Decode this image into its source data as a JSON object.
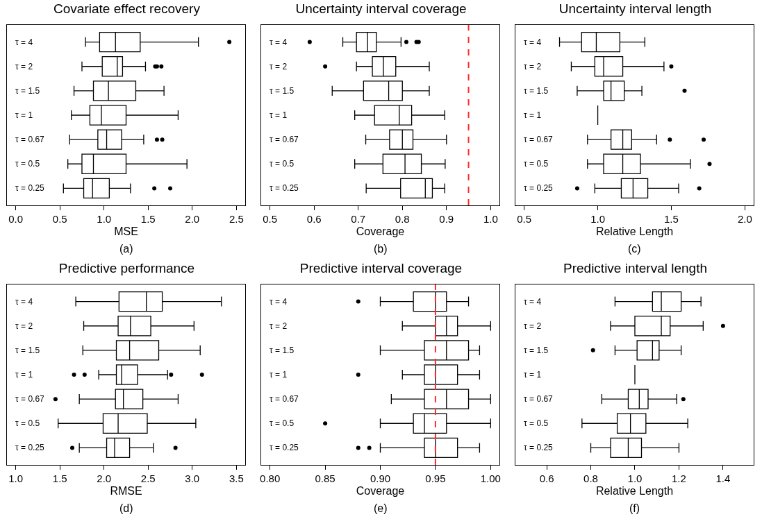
{
  "chart_data": [
    {
      "type": "box",
      "orientation": "horizontal",
      "title": "Covariate effect recovery",
      "xlabel": "MSE",
      "annotations": [
        "(a)"
      ],
      "categories": [
        "τ = 4",
        "τ = 2",
        "τ = 1.5",
        "τ = 1",
        "τ = 0.67",
        "τ = 0.5",
        "τ = 0.25"
      ],
      "xlim": [
        -0.1,
        2.6
      ],
      "xticks": [
        {
          "value": 0,
          "label": "0.0"
        },
        0.5,
        {
          "value": 1,
          "label": "1.0"
        },
        1.5,
        {
          "value": 2,
          "label": "2.0"
        },
        2.5
      ],
      "boxes": [
        {
          "low": 0.79,
          "q1": 0.95,
          "median": 1.13,
          "q3": 1.41,
          "high": 2.07,
          "outliers": [
            2.42
          ]
        },
        {
          "low": 0.75,
          "q1": 0.98,
          "median": 1.15,
          "q3": 1.21,
          "high": 1.47,
          "outliers": [
            1.58,
            1.6,
            1.65
          ]
        },
        {
          "low": 0.66,
          "q1": 0.88,
          "median": 1.05,
          "q3": 1.36,
          "high": 1.68
        },
        {
          "low": 0.63,
          "q1": 0.84,
          "median": 0.97,
          "q3": 1.25,
          "high": 1.84
        },
        {
          "low": 0.61,
          "q1": 0.93,
          "median": 1.03,
          "q3": 1.2,
          "high": 1.45,
          "outliers": [
            1.6,
            1.66
          ]
        },
        {
          "low": 0.59,
          "q1": 0.75,
          "median": 0.88,
          "q3": 1.25,
          "high": 1.94
        },
        {
          "low": 0.54,
          "q1": 0.77,
          "median": 0.87,
          "q3": 1.06,
          "high": 1.3,
          "outliers": [
            1.57,
            1.75
          ]
        }
      ]
    },
    {
      "type": "box",
      "orientation": "horizontal",
      "title": "Uncertainty interval coverage",
      "xlabel": "Coverage",
      "annotations": [
        "(b)"
      ],
      "categories": [
        "τ = 4",
        "τ = 2",
        "τ = 1.5",
        "τ = 1",
        "τ = 0.67",
        "τ = 0.5",
        "τ = 0.25"
      ],
      "xlim": [
        0.48,
        1.02
      ],
      "xticks": [
        0.5,
        0.6,
        0.7,
        0.8,
        0.9,
        {
          "value": 1,
          "label": "1.0"
        }
      ],
      "ref_lines": [
        {
          "axis": "x",
          "value": 0.95,
          "color": "#ff2a2a",
          "line_style": "dashed"
        }
      ],
      "boxes": [
        {
          "low": 0.665,
          "q1": 0.696,
          "median": 0.721,
          "q3": 0.741,
          "high": 0.797,
          "outliers": [
            0.59,
            0.809,
            0.832,
            0.837
          ]
        },
        {
          "low": 0.696,
          "q1": 0.732,
          "median": 0.757,
          "q3": 0.785,
          "high": 0.861,
          "outliers": [
            0.625
          ]
        },
        {
          "low": 0.641,
          "q1": 0.712,
          "median": 0.769,
          "q3": 0.8,
          "high": 0.861
        },
        {
          "low": 0.692,
          "q1": 0.737,
          "median": 0.793,
          "q3": 0.821,
          "high": 0.896
        },
        {
          "low": 0.717,
          "q1": 0.771,
          "median": 0.8,
          "q3": 0.824,
          "high": 0.9
        },
        {
          "low": 0.692,
          "q1": 0.756,
          "median": 0.806,
          "q3": 0.843,
          "high": 0.897
        },
        {
          "low": 0.718,
          "q1": 0.796,
          "median": 0.852,
          "q3": 0.868,
          "high": 0.896
        }
      ]
    },
    {
      "type": "box",
      "orientation": "horizontal",
      "title": "Uncertainty interval length",
      "xlabel": "Relative Length",
      "annotations": [
        "(c)"
      ],
      "categories": [
        "τ = 4",
        "τ = 2",
        "τ = 1.5",
        "τ = 1",
        "τ = 0.67",
        "τ = 0.5",
        "τ = 0.25"
      ],
      "xlim": [
        0.44,
        2.06
      ],
      "xticks": [
        0.5,
        {
          "value": 1,
          "label": "1.0"
        },
        1.5,
        {
          "value": 2,
          "label": "2.0"
        }
      ],
      "boxes": [
        {
          "low": 0.74,
          "q1": 0.89,
          "median": 0.99,
          "q3": 1.15,
          "high": 1.32
        },
        {
          "low": 0.82,
          "q1": 0.98,
          "median": 1.04,
          "q3": 1.17,
          "high": 1.45,
          "outliers": [
            1.5
          ]
        },
        {
          "low": 0.86,
          "q1": 1.04,
          "median": 1.09,
          "q3": 1.18,
          "high": 1.3,
          "outliers": [
            1.59
          ]
        },
        {
          "low": 1,
          "q1": 1,
          "median": 1,
          "q3": 1,
          "high": 1
        },
        {
          "low": 0.93,
          "q1": 1.09,
          "median": 1.17,
          "q3": 1.23,
          "high": 1.4,
          "outliers": [
            1.49,
            1.72
          ]
        },
        {
          "low": 0.93,
          "q1": 1.04,
          "median": 1.17,
          "q3": 1.29,
          "high": 1.63,
          "outliers": [
            1.76
          ]
        },
        {
          "low": 0.98,
          "q1": 1.16,
          "median": 1.24,
          "q3": 1.34,
          "high": 1.55,
          "outliers": [
            0.86,
            1.69
          ]
        }
      ]
    },
    {
      "type": "box",
      "orientation": "horizontal",
      "title": "Predictive performance",
      "xlabel": "RMSE",
      "annotations": [
        "(d)"
      ],
      "categories": [
        "τ = 4",
        "τ = 2",
        "τ = 1.5",
        "τ = 1",
        "τ = 0.67",
        "τ = 0.5",
        "τ = 0.25"
      ],
      "xlim": [
        0.9,
        3.6
      ],
      "xticks": [
        {
          "value": 1,
          "label": "1.0"
        },
        1.5,
        {
          "value": 2,
          "label": "2.0"
        },
        2.5,
        {
          "value": 3,
          "label": "3.0"
        },
        3.5
      ],
      "boxes": [
        {
          "low": 1.68,
          "q1": 2.17,
          "median": 2.48,
          "q3": 2.66,
          "high": 3.33
        },
        {
          "low": 1.77,
          "q1": 2.16,
          "median": 2.3,
          "q3": 2.53,
          "high": 3.02
        },
        {
          "low": 1.76,
          "q1": 2.14,
          "median": 2.29,
          "q3": 2.62,
          "high": 3.09
        },
        {
          "low": 1.94,
          "q1": 2.14,
          "median": 2.2,
          "q3": 2.38,
          "high": 2.72,
          "outliers": [
            1.66,
            1.78,
            2.76,
            3.11
          ]
        },
        {
          "low": 1.72,
          "q1": 2.13,
          "median": 2.22,
          "q3": 2.44,
          "high": 2.84,
          "outliers": [
            1.45
          ]
        },
        {
          "low": 1.48,
          "q1": 1.99,
          "median": 2.16,
          "q3": 2.49,
          "high": 3.04
        },
        {
          "low": 1.72,
          "q1": 2.03,
          "median": 2.12,
          "q3": 2.29,
          "high": 2.56,
          "outliers": [
            1.64,
            2.81
          ]
        }
      ]
    },
    {
      "type": "box",
      "orientation": "horizontal",
      "title": "Predictive interval coverage",
      "xlabel": "Coverage",
      "annotations": [
        "(e)"
      ],
      "categories": [
        "τ = 4",
        "τ = 2",
        "τ = 1.5",
        "τ = 1",
        "τ = 0.67",
        "τ = 0.5",
        "τ = 0.25"
      ],
      "xlim": [
        0.792,
        1.008
      ],
      "xticks": [
        {
          "value": 0.8,
          "label": "0.80"
        },
        0.85,
        {
          "value": 0.9,
          "label": "0.90"
        },
        0.95,
        {
          "value": 1,
          "label": "1.00"
        }
      ],
      "ref_lines": [
        {
          "axis": "x",
          "value": 0.95,
          "color": "#ff2a2a",
          "line_style": "dashed"
        }
      ],
      "boxes": [
        {
          "low": 0.9,
          "q1": 0.93,
          "median": 0.95,
          "q3": 0.96,
          "high": 0.98,
          "outliers": [
            0.88
          ]
        },
        {
          "low": 0.92,
          "q1": 0.95,
          "median": 0.96,
          "q3": 0.97,
          "high": 1
        },
        {
          "low": 0.9,
          "q1": 0.94,
          "median": 0.96,
          "q3": 0.98,
          "high": 0.99
        },
        {
          "low": 0.92,
          "q1": 0.94,
          "median": 0.95,
          "q3": 0.97,
          "high": 0.99,
          "outliers": [
            0.88
          ]
        },
        {
          "low": 0.91,
          "q1": 0.94,
          "median": 0.96,
          "q3": 0.98,
          "high": 1
        },
        {
          "low": 0.9,
          "q1": 0.93,
          "median": 0.94,
          "q3": 0.96,
          "high": 1,
          "outliers": [
            0.85
          ]
        },
        {
          "low": 0.9,
          "q1": 0.94,
          "median": 0.95,
          "q3": 0.97,
          "high": 0.99,
          "outliers": [
            0.88,
            0.89
          ]
        }
      ]
    },
    {
      "type": "box",
      "orientation": "horizontal",
      "title": "Predictive interval length",
      "xlabel": "Relative Length",
      "annotations": [
        "(f)"
      ],
      "categories": [
        "τ = 4",
        "τ = 2",
        "τ = 1.5",
        "τ = 1",
        "τ = 0.67",
        "τ = 0.5",
        "τ = 0.25"
      ],
      "xlim": [
        0.458,
        1.539
      ],
      "xticks": [
        0.6,
        0.8,
        {
          "value": 1,
          "label": "1.0"
        },
        1.2,
        1.4
      ],
      "boxes": [
        {
          "low": 0.91,
          "q1": 1.08,
          "median": 1.12,
          "q3": 1.21,
          "high": 1.3
        },
        {
          "low": 0.89,
          "q1": 1.0,
          "median": 1.12,
          "q3": 1.16,
          "high": 1.31,
          "outliers": [
            1.4
          ]
        },
        {
          "low": 0.91,
          "q1": 1.01,
          "median": 1.08,
          "q3": 1.11,
          "high": 1.21,
          "outliers": [
            0.81
          ]
        },
        {
          "low": 1,
          "q1": 1,
          "median": 1,
          "q3": 1,
          "high": 1
        },
        {
          "low": 0.85,
          "q1": 0.97,
          "median": 1.02,
          "q3": 1.06,
          "high": 1.19,
          "outliers": [
            1.22
          ]
        },
        {
          "low": 0.76,
          "q1": 0.92,
          "median": 0.98,
          "q3": 1.05,
          "high": 1.24
        },
        {
          "low": 0.8,
          "q1": 0.89,
          "median": 0.97,
          "q3": 1.03,
          "high": 1.2
        }
      ]
    }
  ]
}
